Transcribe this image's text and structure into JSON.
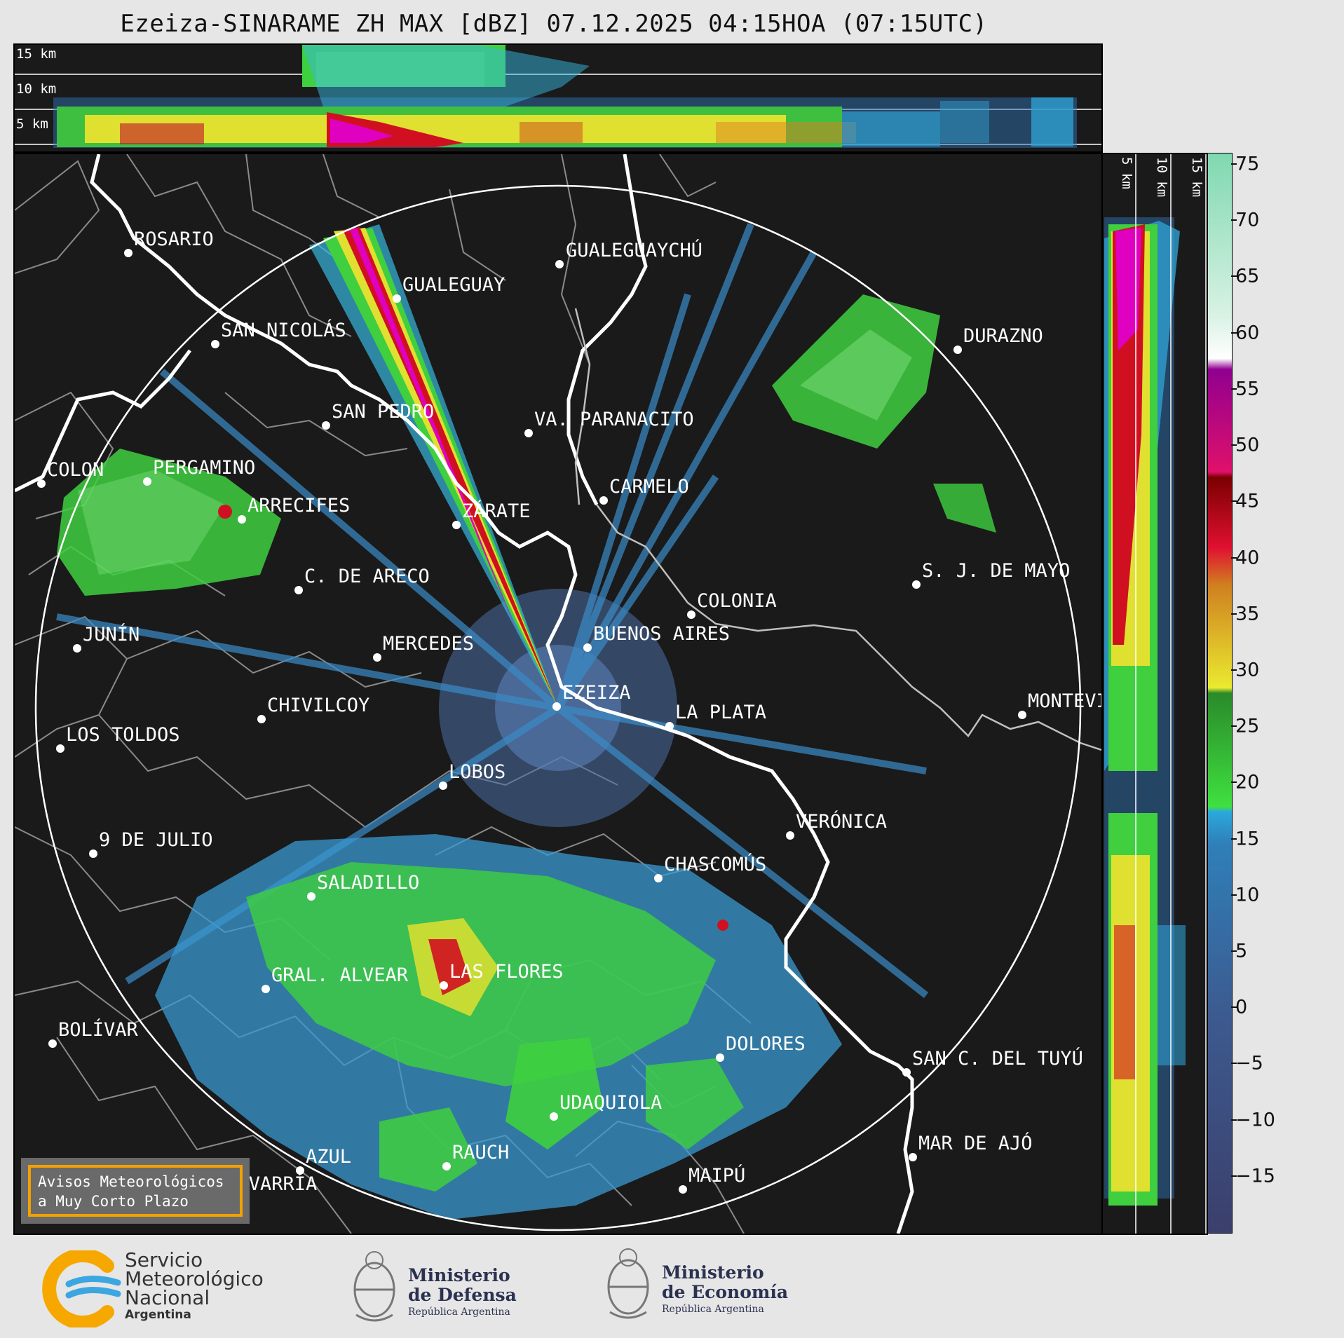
{
  "title": "Ezeiza-SINARAME ZH MAX [dBZ] 07.12.2025 04:15HOA (07:15UTC)",
  "xsec_top": {
    "labels": [
      "15 km",
      "10 km",
      "5 km"
    ]
  },
  "xsec_right": {
    "labels": [
      "5 km",
      "10 km",
      "15 km"
    ]
  },
  "colorbar": {
    "ticks": [
      "75",
      "70",
      "65",
      "60",
      "55",
      "50",
      "45",
      "40",
      "35",
      "30",
      "25",
      "20",
      "15",
      "10",
      "5",
      "0",
      "−5",
      "−10",
      "−15"
    ],
    "values": [
      75,
      70,
      65,
      60,
      55,
      50,
      45,
      40,
      35,
      30,
      25,
      20,
      15,
      10,
      5,
      0,
      -5,
      -10,
      -15
    ],
    "range": [
      -20,
      76
    ]
  },
  "cities": [
    {
      "name": "ROSARIO"
    },
    {
      "name": "GUALEGUAYCHÚ"
    },
    {
      "name": "GUALEGUAY"
    },
    {
      "name": "SAN NICOLÁS"
    },
    {
      "name": "DURAZNO"
    },
    {
      "name": "SAN PEDRO"
    },
    {
      "name": "VA. PARANACITO"
    },
    {
      "name": "COLON"
    },
    {
      "name": "PERGAMINO"
    },
    {
      "name": "CARMELO"
    },
    {
      "name": "ARRECIFES"
    },
    {
      "name": "ZÁRATE"
    },
    {
      "name": "S. J. DE MAYO"
    },
    {
      "name": "C. DE ARECO"
    },
    {
      "name": "COLONIA"
    },
    {
      "name": "JUNÍN"
    },
    {
      "name": "BUENOS AIRES"
    },
    {
      "name": "MERCEDES"
    },
    {
      "name": "EZEIZA"
    },
    {
      "name": "MONTEVIDEO"
    },
    {
      "name": "CHIVILCOY"
    },
    {
      "name": "LA PLATA"
    },
    {
      "name": "LOS TOLDOS"
    },
    {
      "name": "LOBOS"
    },
    {
      "name": "VERÓNICA"
    },
    {
      "name": "9 DE JULIO"
    },
    {
      "name": "CHASCOMÚS"
    },
    {
      "name": "SALADILLO"
    },
    {
      "name": "GRAL. ALVEAR"
    },
    {
      "name": "LAS FLORES"
    },
    {
      "name": "BOLÍVAR"
    },
    {
      "name": "DOLORES"
    },
    {
      "name": "SAN C. DEL TUYÚ"
    },
    {
      "name": "UDAQUIOLA"
    },
    {
      "name": "MAR DE AJÓ"
    },
    {
      "name": "AZUL"
    },
    {
      "name": "RAUCH"
    },
    {
      "name": "OLAVARRÍA"
    },
    {
      "name": "MAIPÚ"
    }
  ],
  "aviso": {
    "line1": "Avisos Meteorológicos",
    "line2": "a Muy Corto Plazo"
  },
  "footer": {
    "smn": {
      "line1": "Servicio",
      "line2": "Meteorológico",
      "line3": "Nacional",
      "line4": "Argentina"
    },
    "defensa": {
      "line1": "Ministerio",
      "line2": "de Defensa",
      "line3": "República Argentina"
    },
    "economia": {
      "line1": "Ministerio",
      "line2": "de Economía",
      "line3": "República Argentina"
    }
  },
  "colors": {
    "background": "#1a1a1a",
    "ring": "#ffffff",
    "coast": "#ffffff",
    "admin": "#8a8a8a",
    "aviso_border": "#f2a200"
  }
}
